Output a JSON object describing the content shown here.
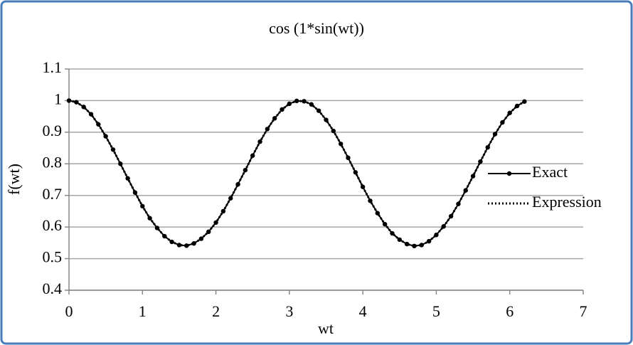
{
  "chart_data": {
    "type": "line",
    "title": "cos (1*sin(wt))",
    "x_label": "wt",
    "y_label": "f(wt)",
    "x": [
      0,
      0.1,
      0.2,
      0.3,
      0.4,
      0.5,
      0.6,
      0.7,
      0.8,
      0.9,
      1.0,
      1.1,
      1.2,
      1.3,
      1.4,
      1.5,
      1.6,
      1.7,
      1.8,
      1.9,
      2.0,
      2.1,
      2.2,
      2.3,
      2.4,
      2.5,
      2.6,
      2.7,
      2.8,
      2.9,
      3.0,
      3.1,
      3.2,
      3.3,
      3.4,
      3.5,
      3.6,
      3.7,
      3.8,
      3.9,
      4.0,
      4.1,
      4.2,
      4.3,
      4.4,
      4.5,
      4.6,
      4.7,
      4.8,
      4.9,
      5.0,
      5.1,
      5.2,
      5.3,
      5.4,
      5.5,
      5.6,
      5.7,
      5.8,
      5.9,
      6.0,
      6.1,
      6.2
    ],
    "series": [
      {
        "name": "Exact",
        "color": "#000000",
        "style": "line-marker",
        "values": [
          1,
          0.995,
          0.98,
          0.957,
          0.925,
          0.887,
          0.845,
          0.8,
          0.754,
          0.709,
          0.666,
          0.628,
          0.597,
          0.571,
          0.553,
          0.543,
          0.541,
          0.548,
          0.563,
          0.585,
          0.614,
          0.65,
          0.691,
          0.735,
          0.78,
          0.826,
          0.87,
          0.91,
          0.944,
          0.972,
          0.99,
          0.999,
          0.998,
          0.988,
          0.968,
          0.939,
          0.904,
          0.863,
          0.819,
          0.773,
          0.727,
          0.683,
          0.644,
          0.609,
          0.58,
          0.56,
          0.546,
          0.54,
          0.543,
          0.555,
          0.575,
          0.602,
          0.634,
          0.673,
          0.716,
          0.761,
          0.807,
          0.852,
          0.894,
          0.931,
          0.961,
          0.983,
          0.997
        ]
      },
      {
        "name": "Expression",
        "color": "#000000",
        "style": "dotted",
        "values": [
          1,
          0.995,
          0.98,
          0.957,
          0.925,
          0.887,
          0.845,
          0.8,
          0.754,
          0.709,
          0.666,
          0.628,
          0.597,
          0.571,
          0.553,
          0.543,
          0.541,
          0.548,
          0.563,
          0.585,
          0.614,
          0.65,
          0.691,
          0.735,
          0.78,
          0.826,
          0.87,
          0.91,
          0.944,
          0.972,
          0.99,
          0.999,
          0.998,
          0.988,
          0.968,
          0.939,
          0.904,
          0.863,
          0.819,
          0.773,
          0.727,
          0.683,
          0.644,
          0.609,
          0.58,
          0.56,
          0.546,
          0.54,
          0.543,
          0.555,
          0.575,
          0.602,
          0.634,
          0.673,
          0.716,
          0.761,
          0.807,
          0.852,
          0.894,
          0.931,
          0.961,
          0.983,
          0.997
        ]
      }
    ],
    "xlim": [
      0,
      7
    ],
    "xticks": [
      0,
      1,
      2,
      3,
      4,
      5,
      6,
      7
    ],
    "ylim": [
      0.4,
      1.1
    ],
    "yticks": [
      0.4,
      0.5,
      0.6,
      0.7,
      0.8,
      0.9,
      1,
      1.1
    ],
    "grid": true,
    "legend": "right"
  }
}
